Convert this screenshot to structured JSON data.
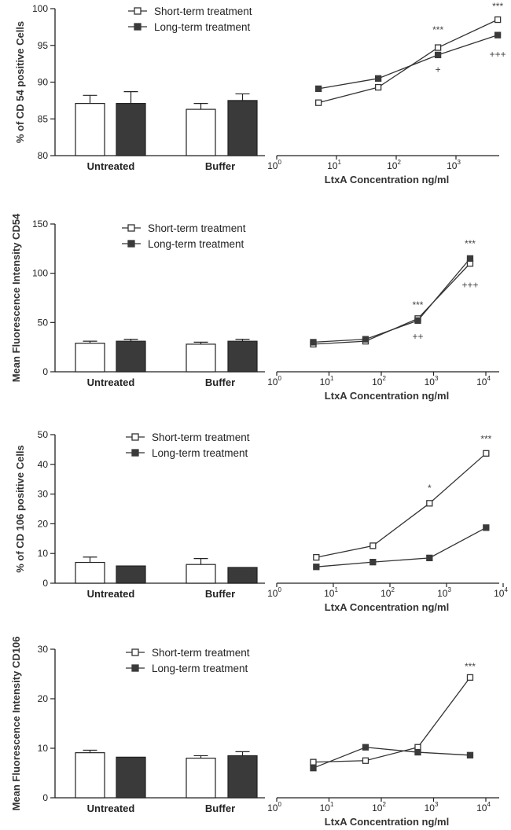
{
  "colors": {
    "short": "#ffffff",
    "long": "#3a3a3a",
    "axis": "#222222",
    "line": "#333333"
  },
  "chart_data": [
    {
      "type": "bar+line",
      "ylabel": "% of CD 54 positive Cells",
      "xlabel": "LtxA Concentration ng/ml",
      "ylim": [
        80,
        100
      ],
      "yticks": [
        80,
        85,
        90,
        95,
        100
      ],
      "xlim_log": [
        0,
        3.7
      ],
      "xticks": [
        {
          "base": "10",
          "exp": "0"
        },
        {
          "base": "10",
          "exp": "1"
        },
        {
          "base": "10",
          "exp": "2"
        },
        {
          "base": "10",
          "exp": "3"
        }
      ],
      "categories": [
        "Untreated",
        "Buffer"
      ],
      "legend": [
        "Short-term treatment",
        "Long-term treatment"
      ],
      "bars": [
        {
          "series": "Short-term treatment",
          "values": [
            87.1,
            86.3
          ],
          "errors": [
            1.1,
            0.8
          ]
        },
        {
          "series": "Long-term treatment",
          "values": [
            87.1,
            87.5
          ],
          "errors": [
            1.6,
            0.9
          ]
        }
      ],
      "lines": [
        {
          "series": "Short-term treatment",
          "x": [
            5,
            50,
            500,
            5000
          ],
          "y": [
            87.2,
            89.3,
            94.7,
            98.5
          ]
        },
        {
          "series": "Long-term treatment",
          "x": [
            5,
            50,
            500,
            5000
          ],
          "y": [
            89.1,
            90.5,
            93.7,
            96.4
          ]
        }
      ],
      "annotations": [
        {
          "text": "***",
          "x": 500,
          "y": 97.1
        },
        {
          "text": "+",
          "x": 500,
          "y": 91.7
        },
        {
          "text": "***",
          "x": 5000,
          "y": 100.3
        },
        {
          "text": "+++",
          "x": 5000,
          "y": 93.8
        }
      ]
    },
    {
      "type": "bar+line",
      "ylabel": "Mean Fluorescence Intensity CD54",
      "xlabel": "LtxA Concentration ng/ml",
      "ylim": [
        0,
        150
      ],
      "yticks": [
        0,
        50,
        100,
        150
      ],
      "xlim_log": [
        0,
        4
      ],
      "xticks": [
        {
          "base": "10",
          "exp": "0"
        },
        {
          "base": "10",
          "exp": "1"
        },
        {
          "base": "10",
          "exp": "2"
        },
        {
          "base": "10",
          "exp": "3"
        },
        {
          "base": "10",
          "exp": "4"
        }
      ],
      "categories": [
        "Untreated",
        "Buffer"
      ],
      "legend": [
        "Short-term treatment",
        "Long-term treatment"
      ],
      "bars": [
        {
          "series": "Short-term treatment",
          "values": [
            29,
            28
          ],
          "errors": [
            2,
            2
          ]
        },
        {
          "series": "Long-term treatment",
          "values": [
            31,
            31
          ],
          "errors": [
            2,
            2
          ]
        }
      ],
      "lines": [
        {
          "series": "Short-term treatment",
          "x": [
            5,
            50,
            500,
            5000
          ],
          "y": [
            28,
            31,
            54,
            110
          ]
        },
        {
          "series": "Long-term treatment",
          "x": [
            5,
            50,
            500,
            5000
          ],
          "y": [
            30,
            33,
            52,
            115
          ]
        }
      ],
      "annotations": [
        {
          "text": "***",
          "x": 500,
          "y": 68
        },
        {
          "text": "++",
          "x": 500,
          "y": 36
        },
        {
          "text": "***",
          "x": 5000,
          "y": 130
        },
        {
          "text": "+++",
          "x": 5000,
          "y": 88
        }
      ]
    },
    {
      "type": "bar+line",
      "ylabel": "% of CD 106 positive Cells",
      "xlabel": "LtxA Concentration ng/ml",
      "ylim": [
        0,
        50
      ],
      "yticks": [
        0,
        10,
        20,
        30,
        40,
        50
      ],
      "xlim_log": [
        0,
        4
      ],
      "xticks": [
        {
          "base": "10",
          "exp": "0"
        },
        {
          "base": "10",
          "exp": "1"
        },
        {
          "base": "10",
          "exp": "2"
        },
        {
          "base": "10",
          "exp": "3"
        },
        {
          "base": "10",
          "exp": "4"
        }
      ],
      "categories": [
        "Untreated",
        "Buffer"
      ],
      "legend": [
        "Short-term treatment",
        "Long-term treatment"
      ],
      "bars": [
        {
          "series": "Short-term treatment",
          "values": [
            7,
            6.3
          ],
          "errors": [
            1.8,
            2.0
          ]
        },
        {
          "series": "Long-term treatment",
          "values": [
            5.8,
            5.3
          ],
          "errors": [
            0,
            0
          ]
        }
      ],
      "lines": [
        {
          "series": "Short-term treatment",
          "x": [
            5,
            50,
            500,
            5000
          ],
          "y": [
            8.7,
            12.6,
            26.9,
            43.7
          ]
        },
        {
          "series": "Long-term treatment",
          "x": [
            5,
            50,
            500,
            5000
          ],
          "y": [
            5.5,
            7.1,
            8.5,
            18.7
          ]
        }
      ],
      "annotations": [
        {
          "text": "*",
          "x": 500,
          "y": 32
        },
        {
          "text": "***",
          "x": 5000,
          "y": 48.5
        }
      ]
    },
    {
      "type": "bar+line",
      "ylabel": "Mean Fluorescence Intensity CD106",
      "xlabel": "LtxA Concentration ng/ml",
      "ylim": [
        0,
        30
      ],
      "yticks": [
        0,
        10,
        20,
        30
      ],
      "xlim_log": [
        0,
        4
      ],
      "xticks": [
        {
          "base": "10",
          "exp": "0"
        },
        {
          "base": "10",
          "exp": "1"
        },
        {
          "base": "10",
          "exp": "2"
        },
        {
          "base": "10",
          "exp": "3"
        },
        {
          "base": "10",
          "exp": "4"
        }
      ],
      "categories": [
        "Untreated",
        "Buffer"
      ],
      "legend": [
        "Short-term treatment",
        "Long-term treatment"
      ],
      "bars": [
        {
          "series": "Short-term treatment",
          "values": [
            9.1,
            8.0
          ],
          "errors": [
            0.5,
            0.5
          ]
        },
        {
          "series": "Long-term treatment",
          "values": [
            8.2,
            8.5
          ],
          "errors": [
            0,
            0.8
          ]
        }
      ],
      "lines": [
        {
          "series": "Short-term treatment",
          "x": [
            5,
            50,
            500,
            5000
          ],
          "y": [
            7.2,
            7.5,
            10.2,
            24.3
          ]
        },
        {
          "series": "Long-term treatment",
          "x": [
            5,
            50,
            500,
            5000
          ],
          "y": [
            6.0,
            10.2,
            9.2,
            8.6
          ]
        }
      ],
      "annotations": [
        {
          "text": "***",
          "x": 5000,
          "y": 26.5
        }
      ]
    }
  ]
}
